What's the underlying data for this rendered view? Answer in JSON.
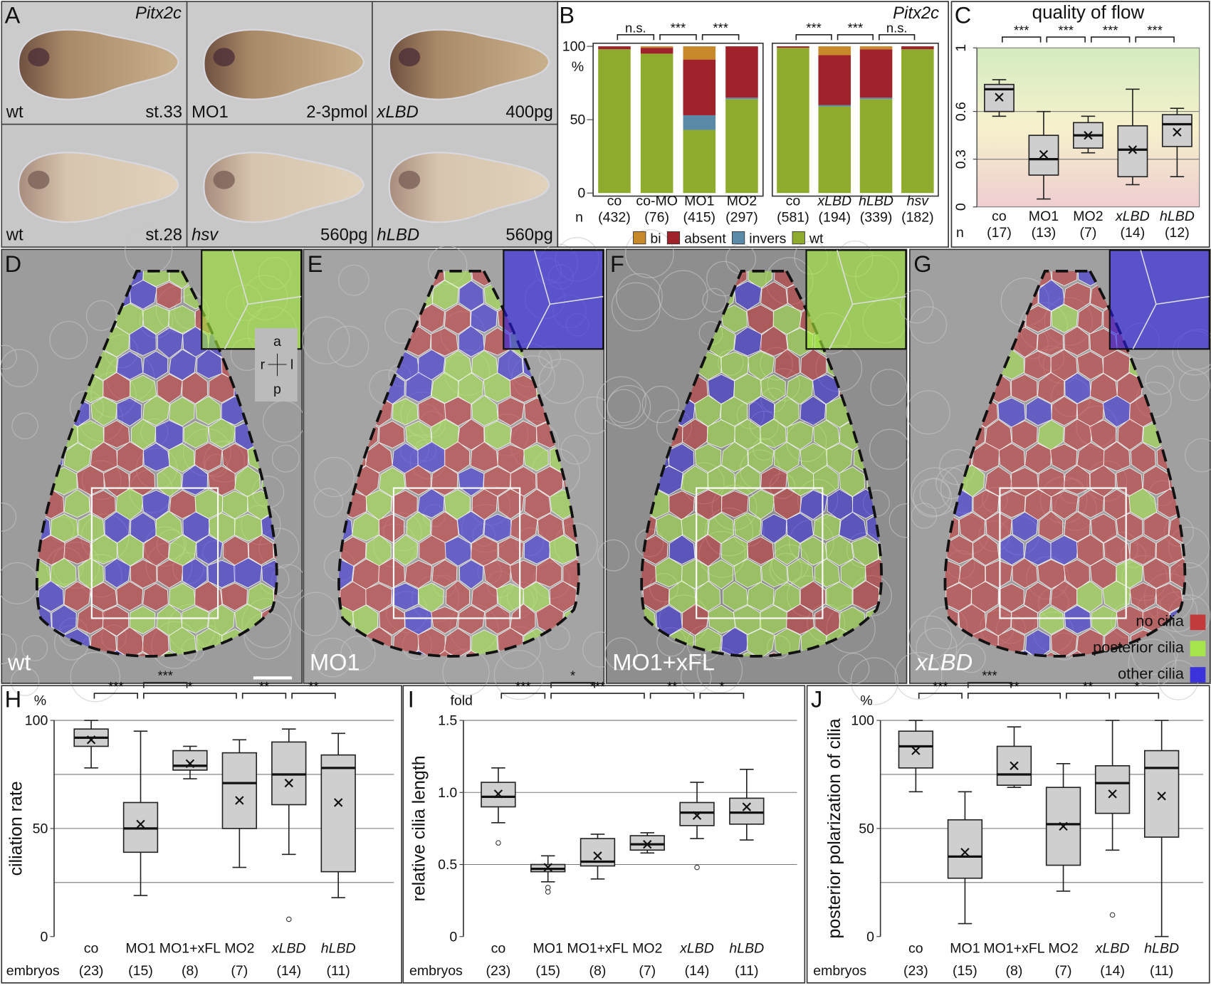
{
  "panel_letters": [
    "A",
    "B",
    "C",
    "D",
    "E",
    "F",
    "G",
    "H",
    "I",
    "J"
  ],
  "embryo_panel": {
    "marker": "Pitx2c",
    "images": [
      {
        "left": "wt",
        "right": "st.33",
        "italic": false
      },
      {
        "left": "MO1",
        "right": "2-3pmol",
        "italic": false
      },
      {
        "left": "xLBD",
        "right": "400pg",
        "italic": true
      },
      {
        "left": "wt",
        "right": "st.28",
        "italic": false
      },
      {
        "left": "hsv",
        "right": "560pg",
        "italic": true
      },
      {
        "left": "hLBD",
        "right": "560pg",
        "italic": true
      }
    ]
  },
  "sem_panels": [
    {
      "label": "wt"
    },
    {
      "label": "MO1"
    },
    {
      "label": "MO1+xFL"
    },
    {
      "label": "xLBD"
    }
  ],
  "orientation_key": {
    "anterior": "a",
    "right": "r",
    "left": "l",
    "posterior": "p"
  },
  "cell_legend": [
    {
      "label": "no cilia",
      "color": "#c8282a"
    },
    {
      "label": "posterior cilia",
      "color": "#a6f03c"
    },
    {
      "label": "other cilia",
      "color": "#2a1ee6"
    }
  ],
  "chart_data": [
    {
      "type": "stacked_bar",
      "title": "Pitx2c",
      "y_label": "%",
      "categories": [
        "co",
        "co-MO",
        "MO1",
        "MO2",
        "co",
        "xLBD",
        "hLBD",
        "hsv"
      ],
      "italic": [
        false,
        false,
        false,
        false,
        false,
        true,
        true,
        true
      ],
      "group_sizes": [
        4,
        4
      ],
      "count_label": "n",
      "counts": [
        "(432)",
        "(76)",
        "(415)",
        "(297)",
        "(581)",
        "(194)",
        "(339)",
        "(182)"
      ],
      "series": [
        {
          "name": "bi",
          "color": "#c8892a",
          "values": [
            0,
            1,
            9,
            0,
            0,
            6,
            2,
            0
          ]
        },
        {
          "name": "absent",
          "color": "#a0222a",
          "values": [
            2,
            4,
            38,
            35,
            1,
            34,
            33,
            2
          ]
        },
        {
          "name": "invers",
          "color": "#5b8aa8",
          "values": [
            0,
            0,
            10,
            1,
            0,
            1,
            1,
            0
          ]
        },
        {
          "name": "wt",
          "color": "#8fab2e",
          "values": [
            98,
            95,
            43,
            64,
            99,
            59,
            64,
            98
          ]
        }
      ],
      "ylim": [
        0,
        100
      ],
      "yticks": [
        0,
        50,
        100
      ],
      "legend": "bottom",
      "significance": {
        "pairs": [
          [
            0,
            1
          ],
          [
            1,
            2
          ],
          [
            2,
            3
          ],
          [
            4,
            5
          ],
          [
            5,
            6
          ],
          [
            6,
            7
          ]
        ],
        "labels": [
          "n.s.",
          "***",
          "***",
          "***",
          "***",
          "n.s."
        ]
      }
    },
    {
      "type": "box",
      "title": "quality of flow",
      "categories": [
        "co",
        "MO1",
        "MO2",
        "xLBD",
        "hLBD"
      ],
      "italic": [
        false,
        false,
        false,
        true,
        true
      ],
      "count_label": "n",
      "counts": [
        "(17)",
        "(13)",
        "(7)",
        "(14)",
        "(12)"
      ],
      "ylim": [
        0,
        1
      ],
      "yticks": [
        0,
        0.3,
        0.6,
        1
      ],
      "gridlines": [
        0.3,
        0.6
      ],
      "boxes": [
        {
          "min": 0.57,
          "q1": 0.6,
          "median": 0.74,
          "q3": 0.77,
          "max": 0.8,
          "mean": 0.69,
          "outliers": []
        },
        {
          "min": 0.05,
          "q1": 0.2,
          "median": 0.3,
          "q3": 0.45,
          "max": 0.6,
          "mean": 0.33,
          "outliers": []
        },
        {
          "min": 0.34,
          "q1": 0.37,
          "median": 0.45,
          "q3": 0.53,
          "max": 0.57,
          "mean": 0.45,
          "outliers": []
        },
        {
          "min": 0.14,
          "q1": 0.19,
          "median": 0.36,
          "q3": 0.51,
          "max": 0.74,
          "mean": 0.36,
          "outliers": []
        },
        {
          "min": 0.19,
          "q1": 0.38,
          "median": 0.52,
          "q3": 0.58,
          "max": 0.62,
          "mean": 0.47,
          "outliers": []
        }
      ],
      "significance": {
        "pairs": [
          [
            0,
            1
          ],
          [
            1,
            2
          ],
          [
            2,
            3
          ],
          [
            3,
            4
          ]
        ],
        "labels": [
          "***",
          "***",
          "***",
          "***"
        ]
      }
    },
    {
      "type": "box",
      "y_label": "ciliation rate",
      "unit": "%",
      "categories": [
        "co",
        "MO1",
        "MO1+xFL",
        "MO2",
        "xLBD",
        "hLBD"
      ],
      "italic": [
        false,
        false,
        false,
        false,
        true,
        true
      ],
      "count_label": "embryos",
      "counts": [
        "(23)",
        "(15)",
        "(8)",
        "(7)",
        "(14)",
        "(11)"
      ],
      "ylim": [
        0,
        100
      ],
      "yticks": [
        0,
        50,
        100
      ],
      "gridlines": [
        25,
        50,
        75,
        100
      ],
      "boxes": [
        {
          "min": 78,
          "q1": 88,
          "median": 92,
          "q3": 96,
          "max": 100,
          "mean": 91,
          "outliers": []
        },
        {
          "min": 19,
          "q1": 39,
          "median": 50,
          "q3": 62,
          "max": 95,
          "mean": 52,
          "outliers": []
        },
        {
          "min": 73,
          "q1": 77,
          "median": 79,
          "q3": 86,
          "max": 88,
          "mean": 80,
          "outliers": []
        },
        {
          "min": 32,
          "q1": 50,
          "median": 71,
          "q3": 85,
          "max": 91,
          "mean": 63,
          "outliers": []
        },
        {
          "min": 38,
          "q1": 61,
          "median": 75,
          "q3": 90,
          "max": 96,
          "mean": 71,
          "outliers": [
            8
          ]
        },
        {
          "min": 18,
          "q1": 30,
          "median": 78,
          "q3": 84,
          "max": 94,
          "mean": 62,
          "outliers": []
        }
      ],
      "significance": {
        "pairs": [
          [
            0,
            1
          ],
          [
            1,
            2
          ],
          [
            1,
            3
          ],
          [
            3,
            4
          ],
          [
            4,
            5
          ]
        ],
        "labels": [
          "***",
          "***",
          "*",
          "**",
          "**"
        ]
      }
    },
    {
      "type": "box",
      "y_label": "relative cilia length",
      "unit": "fold",
      "categories": [
        "co",
        "MO1",
        "MO1+xFL",
        "MO2",
        "xLBD",
        "hLBD"
      ],
      "italic": [
        false,
        false,
        false,
        false,
        true,
        true
      ],
      "count_label": "embryos",
      "counts": [
        "(23)",
        "(15)",
        "(8)",
        "(7)",
        "(14)",
        "(11)"
      ],
      "ylim": [
        0,
        1.5
      ],
      "yticks": [
        0,
        0.5,
        {
          "value": 1,
          "label": "1.0"
        },
        1.5
      ],
      "gridlines": [
        0.5,
        1,
        1.5
      ],
      "boxes": [
        {
          "min": 0.79,
          "q1": 0.9,
          "median": 0.97,
          "q3": 1.07,
          "max": 1.17,
          "mean": 0.99,
          "outliers": [
            0.65
          ]
        },
        {
          "min": 0.38,
          "q1": 0.45,
          "median": 0.47,
          "q3": 0.5,
          "max": 0.56,
          "mean": 0.48,
          "outliers": [
            0.34,
            0.31
          ]
        },
        {
          "min": 0.4,
          "q1": 0.49,
          "median": 0.52,
          "q3": 0.68,
          "max": 0.71,
          "mean": 0.56,
          "outliers": []
        },
        {
          "min": 0.58,
          "q1": 0.6,
          "median": 0.64,
          "q3": 0.7,
          "max": 0.72,
          "mean": 0.64,
          "outliers": []
        },
        {
          "min": 0.68,
          "q1": 0.77,
          "median": 0.86,
          "q3": 0.93,
          "max": 1.07,
          "mean": 0.84,
          "outliers": [
            0.48
          ]
        },
        {
          "min": 0.67,
          "q1": 0.78,
          "median": 0.86,
          "q3": 0.96,
          "max": 1.16,
          "mean": 0.9,
          "outliers": []
        }
      ],
      "significance": {
        "pairs": [
          [
            0,
            1
          ],
          [
            1,
            2
          ],
          [
            1,
            3
          ],
          [
            3,
            4
          ],
          [
            4,
            5
          ]
        ],
        "labels": [
          "***",
          "*",
          "***",
          "**",
          "*"
        ]
      }
    },
    {
      "type": "box",
      "y_label": "posterior polarization of cilia",
      "unit": "%",
      "categories": [
        "co",
        "MO1",
        "MO1+xFL",
        "MO2",
        "xLBD",
        "hLBD"
      ],
      "italic": [
        false,
        false,
        false,
        false,
        true,
        true
      ],
      "count_label": "embryos",
      "counts": [
        "(23)",
        "(15)",
        "(8)",
        "(7)",
        "(14)",
        "(11)"
      ],
      "ylim": [
        0,
        100
      ],
      "yticks": [
        0,
        50,
        100
      ],
      "gridlines": [
        25,
        50,
        75,
        100
      ],
      "boxes": [
        {
          "min": 67,
          "q1": 78,
          "median": 88,
          "q3": 95,
          "max": 100,
          "mean": 86,
          "outliers": []
        },
        {
          "min": 6,
          "q1": 27,
          "median": 37,
          "q3": 54,
          "max": 67,
          "mean": 39,
          "outliers": []
        },
        {
          "min": 69,
          "q1": 70,
          "median": 75,
          "q3": 88,
          "max": 97,
          "mean": 79,
          "outliers": []
        },
        {
          "min": 21,
          "q1": 33,
          "median": 52,
          "q3": 69,
          "max": 80,
          "mean": 51,
          "outliers": []
        },
        {
          "min": 40,
          "q1": 57,
          "median": 71,
          "q3": 79,
          "max": 100,
          "mean": 66,
          "outliers": [
            10
          ]
        },
        {
          "min": 0,
          "q1": 46,
          "median": 78,
          "q3": 86,
          "max": 100,
          "mean": 65,
          "outliers": []
        }
      ],
      "significance": {
        "pairs": [
          [
            0,
            1
          ],
          [
            1,
            2
          ],
          [
            1,
            3
          ],
          [
            3,
            4
          ],
          [
            4,
            5
          ]
        ],
        "labels": [
          "***",
          "***",
          "**",
          "**",
          "*"
        ]
      }
    }
  ]
}
